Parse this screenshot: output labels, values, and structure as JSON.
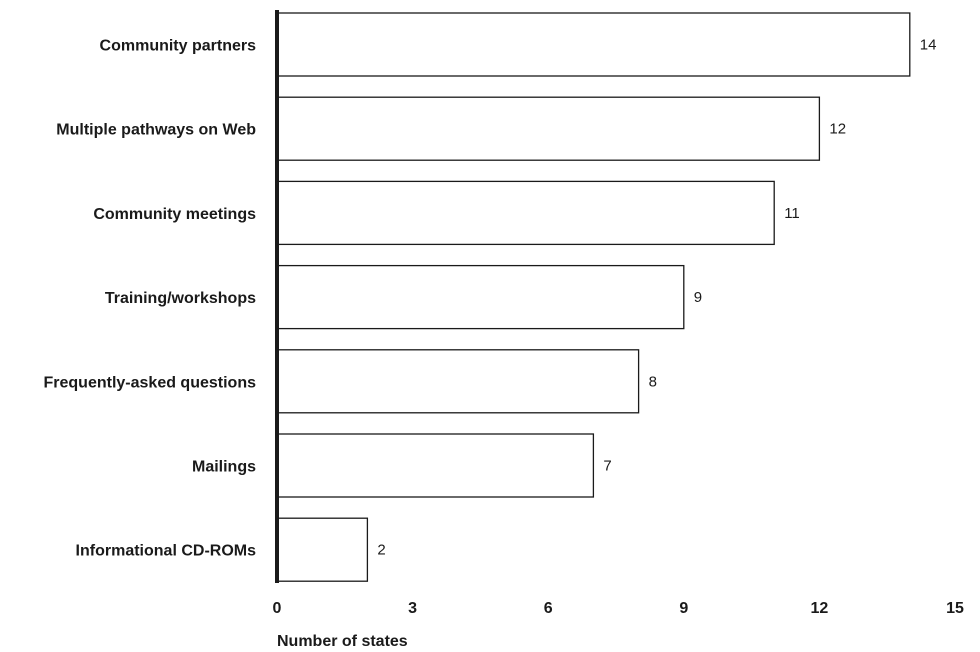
{
  "chart_data": {
    "type": "bar",
    "orientation": "horizontal",
    "title": "",
    "xlabel": "Number of states",
    "ylabel": "",
    "xlim": [
      0,
      15
    ],
    "xticks": [
      "0",
      "3",
      "6",
      "9",
      "12",
      "15"
    ],
    "categories": [
      "Community partners",
      "Multiple pathways on Web",
      "Community meetings",
      "Training/workshops",
      "Frequently-asked questions",
      "Mailings",
      "Informational CD-ROMs"
    ],
    "values": [
      14,
      12,
      11,
      9,
      8,
      7,
      2
    ],
    "value_labels": [
      "14",
      "12",
      "11",
      "9",
      "8",
      "7",
      "2"
    ],
    "grid": false,
    "legend": "none",
    "colors": {
      "bar_fill": "#ffffff",
      "bar_stroke": "#1a1a1a",
      "text": "#1a1a1a"
    }
  }
}
